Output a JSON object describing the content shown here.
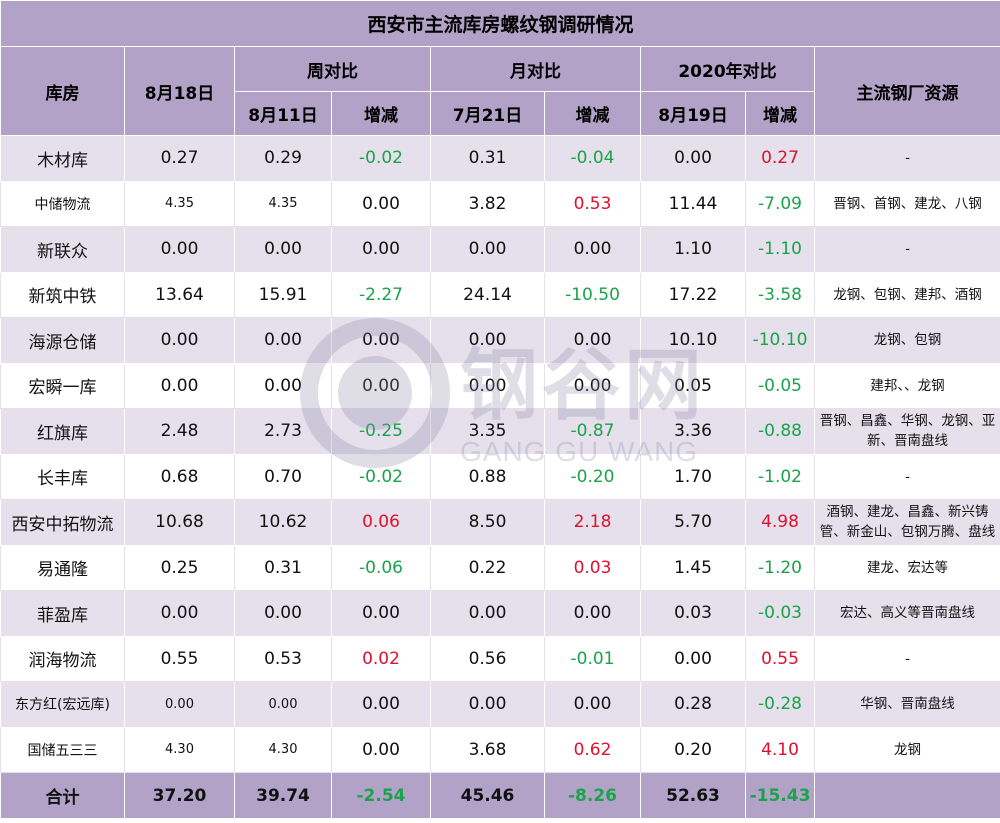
{
  "title": "西安市主流库房螺纹钢调研情况",
  "headers": {
    "warehouse": "库房",
    "current_date": "8月18日",
    "week_group": "周对比",
    "month_group": "月对比",
    "year_group": "2020年对比",
    "source": "主流钢厂资源",
    "week_date": "8月11日",
    "week_change": "增减",
    "month_date": "7月21日",
    "month_change": "增减",
    "year_date": "8月19日",
    "year_change": "增减"
  },
  "rows": [
    {
      "name": "木材库",
      "cur": "0.27",
      "wk": "0.29",
      "wkd": "-0.02",
      "mo": "0.31",
      "mod": "-0.04",
      "yr": "0.00",
      "yrd": "0.27",
      "src": "-"
    },
    {
      "name": "中储物流",
      "cur": "4.35",
      "wk": "4.35",
      "wkd": "0.00",
      "mo": "3.82",
      "mod": "0.53",
      "yr": "11.44",
      "yrd": "-7.09",
      "src": "晋钢、首钢、建龙、八钢"
    },
    {
      "name": "新联众",
      "cur": "0.00",
      "wk": "0.00",
      "wkd": "0.00",
      "mo": "0.00",
      "mod": "0.00",
      "yr": "1.10",
      "yrd": "-1.10",
      "src": "-"
    },
    {
      "name": "新筑中铁",
      "cur": "13.64",
      "wk": "15.91",
      "wkd": "-2.27",
      "mo": "24.14",
      "mod": "-10.50",
      "yr": "17.22",
      "yrd": "-3.58",
      "src": "龙钢、包钢、建邦、酒钢"
    },
    {
      "name": "海源仓储",
      "cur": "0.00",
      "wk": "0.00",
      "wkd": "0.00",
      "mo": "0.00",
      "mod": "0.00",
      "yr": "10.10",
      "yrd": "-10.10",
      "src": "龙钢、包钢"
    },
    {
      "name": "宏瞬一库",
      "cur": "0.00",
      "wk": "0.00",
      "wkd": "0.00",
      "mo": "0.00",
      "mod": "0.00",
      "yr": "0.05",
      "yrd": "-0.05",
      "src": "建邦、、龙钢"
    },
    {
      "name": "红旗库",
      "cur": "2.48",
      "wk": "2.73",
      "wkd": "-0.25",
      "mo": "3.35",
      "mod": "-0.87",
      "yr": "3.36",
      "yrd": "-0.88",
      "src": "晋钢、昌鑫、华钢、龙钢、亚新、晋南盘线"
    },
    {
      "name": "长丰库",
      "cur": "0.68",
      "wk": "0.70",
      "wkd": "-0.02",
      "mo": "0.88",
      "mod": "-0.20",
      "yr": "1.70",
      "yrd": "-1.02",
      "src": "-"
    },
    {
      "name": "西安中拓物流",
      "cur": "10.68",
      "wk": "10.62",
      "wkd": "0.06",
      "mo": "8.50",
      "mod": "2.18",
      "yr": "5.70",
      "yrd": "4.98",
      "src": "酒钢、建龙、昌鑫、新兴铸管、新金山、包钢万腾、盘线"
    },
    {
      "name": "易通隆",
      "cur": "0.25",
      "wk": "0.31",
      "wkd": "-0.06",
      "mo": "0.22",
      "mod": "0.03",
      "yr": "1.45",
      "yrd": "-1.20",
      "src": "建龙、宏达等"
    },
    {
      "name": "菲盈库",
      "cur": "0.00",
      "wk": "0.00",
      "wkd": "0.00",
      "mo": "0.00",
      "mod": "0.00",
      "yr": "0.03",
      "yrd": "-0.03",
      "src": "宏达、高义等晋南盘线"
    },
    {
      "name": "润海物流",
      "cur": "0.55",
      "wk": "0.53",
      "wkd": "0.02",
      "mo": "0.56",
      "mod": "-0.01",
      "yr": "0.00",
      "yrd": "0.55",
      "src": "-"
    },
    {
      "name": "东方红(宏远库)",
      "cur": "0.00",
      "wk": "0.00",
      "wkd": "0.00",
      "mo": "0.00",
      "mod": "0.00",
      "yr": "0.28",
      "yrd": "-0.28",
      "src": "华钢、晋南盘线"
    },
    {
      "name": "国储五三三",
      "cur": "4.30",
      "wk": "4.30",
      "wkd": "0.00",
      "mo": "3.68",
      "mod": "0.62",
      "yr": "0.20",
      "yrd": "4.10",
      "src": "龙钢"
    }
  ],
  "total": {
    "name": "合计",
    "cur": "37.20",
    "wk": "39.74",
    "wkd": "-2.54",
    "mo": "45.46",
    "mod": "-8.26",
    "yr": "52.63",
    "yrd": "-15.43",
    "src": ""
  },
  "watermark": {
    "cn": "钢谷网",
    "en": "GANG GU WANG"
  },
  "colors": {
    "header_bg": "#b3a2c8",
    "band_bg": "#e5e0ec",
    "increase": "#e0102f",
    "decrease": "#1aa34a"
  }
}
